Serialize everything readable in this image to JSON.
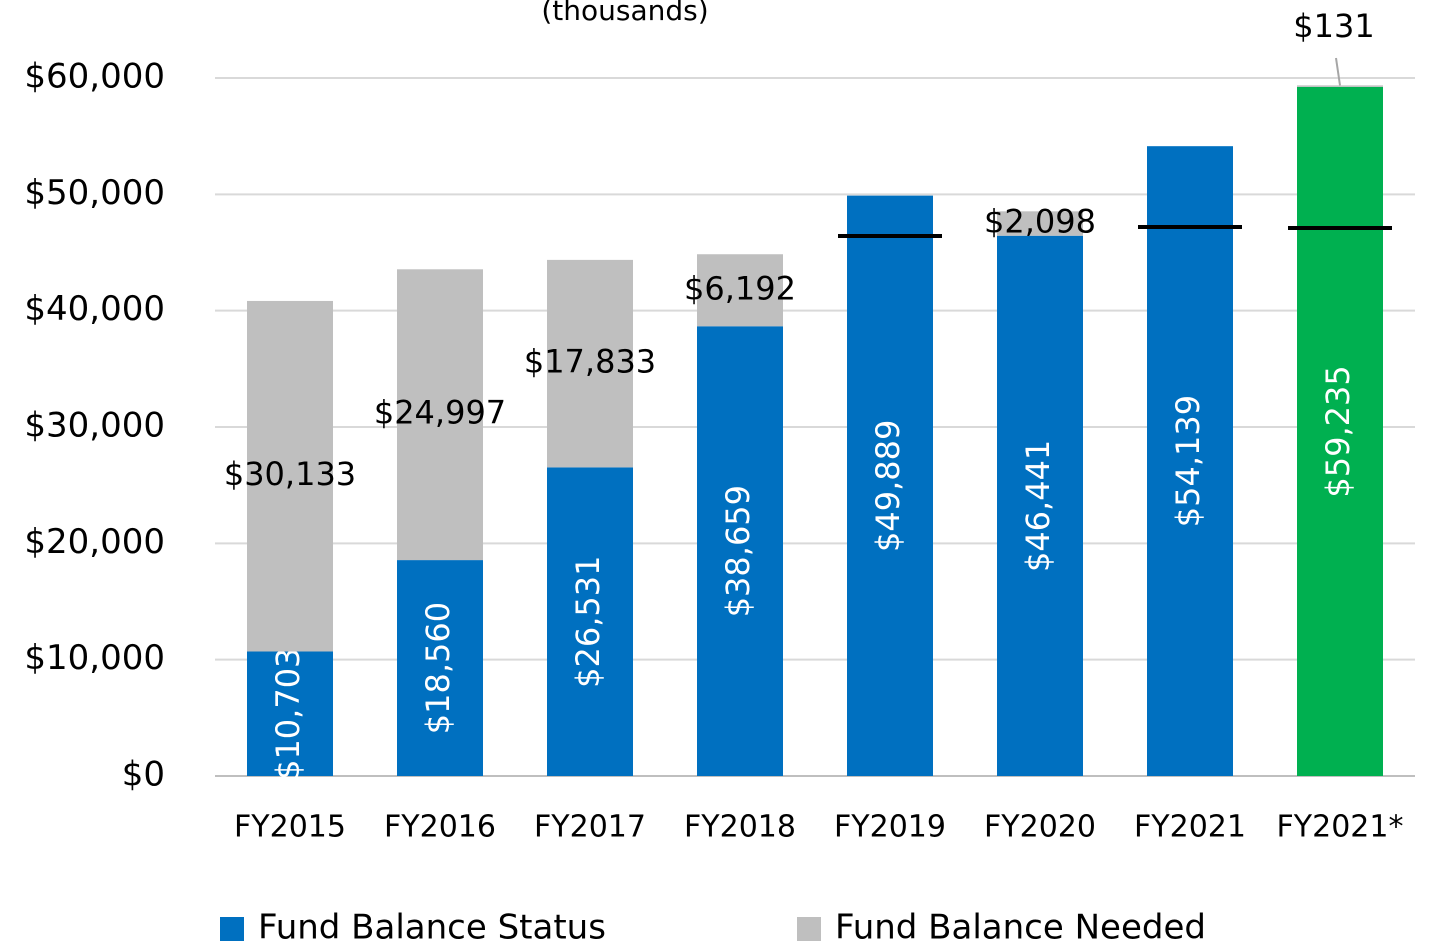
{
  "chart_data": {
    "type": "stacked_bar",
    "subtitle": "(thousands)",
    "categories": [
      "FY2015",
      "FY2016",
      "FY2017",
      "FY2018",
      "FY2019",
      "FY2020",
      "FY2021",
      "FY2021*"
    ],
    "series": [
      {
        "name": "Fund Balance Status",
        "color": "#0070c0",
        "colors": [
          "#0070c0",
          "#0070c0",
          "#0070c0",
          "#0070c0",
          "#0070c0",
          "#0070c0",
          "#0070c0",
          "#00b050"
        ],
        "values": [
          10703,
          18560,
          26531,
          38659,
          49889,
          46441,
          54139,
          59235
        ],
        "value_labels": [
          "$10,703",
          "$18,560",
          "$26,531",
          "$38,659",
          "$49,889",
          "$46,441",
          "$54,139",
          "$59,235"
        ]
      },
      {
        "name": "Fund Balance Needed",
        "color": "#bfbfbf",
        "values": [
          30133,
          24997,
          17833,
          6192,
          null,
          2098,
          null,
          131
        ],
        "value_labels": [
          "$30,133",
          "$24,997",
          "$17,833",
          "$6,192",
          null,
          "$2,098",
          null,
          "$131"
        ]
      }
    ],
    "target_values": [
      null,
      null,
      null,
      null,
      46420,
      null,
      47190,
      47110
    ],
    "target_color": "#000000",
    "ylim": [
      0,
      60000
    ],
    "yticks": [
      {
        "value": 0,
        "label": "$0"
      },
      {
        "value": 10000,
        "label": "$10,000"
      },
      {
        "value": 20000,
        "label": "$20,000"
      },
      {
        "value": 30000,
        "label": "$30,000"
      },
      {
        "value": 40000,
        "label": "$40,000"
      },
      {
        "value": 50000,
        "label": "$50,000"
      },
      {
        "value": 60000,
        "label": "$60,000"
      }
    ],
    "grid": true
  }
}
